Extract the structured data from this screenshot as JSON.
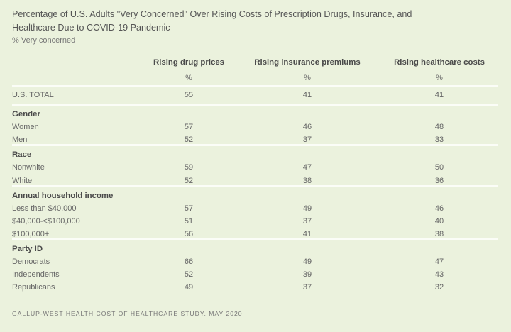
{
  "title": "Percentage of U.S. Adults \"Very Concerned\" Over Rising Costs of Prescription Drugs, Insurance, and Healthcare Due to COVID-19 Pandemic",
  "subtitle": "% Very concerned",
  "source": "GALLUP-WEST HEALTH COST OF HEALTHCARE STUDY, MAY 2020",
  "colors": {
    "background": "#ebf2dd",
    "separator": "#fbfdf7",
    "text": "#555555"
  },
  "chart_data": {
    "type": "table",
    "title": "Percentage of U.S. Adults \"Very Concerned\" Over Rising Costs of Prescription Drugs, Insurance, and Healthcare Due to COVID-19 Pandemic",
    "columns": [
      {
        "label": "Rising drug prices",
        "unit": "%"
      },
      {
        "label": "Rising insurance premiums",
        "unit": "%"
      },
      {
        "label": "Rising healthcare costs",
        "unit": "%"
      }
    ],
    "rows": [
      {
        "label": "U.S. TOTAL",
        "values": [
          55,
          41,
          41
        ]
      },
      {
        "label": "Gender",
        "group": true
      },
      {
        "label": "Women",
        "values": [
          57,
          46,
          48
        ]
      },
      {
        "label": "Men",
        "values": [
          52,
          37,
          33
        ]
      },
      {
        "label": "Race",
        "group": true
      },
      {
        "label": "Nonwhite",
        "values": [
          59,
          47,
          50
        ]
      },
      {
        "label": "White",
        "values": [
          52,
          38,
          36
        ]
      },
      {
        "label": "Annual household income",
        "group": true
      },
      {
        "label": "Less than $40,000",
        "values": [
          57,
          49,
          46
        ]
      },
      {
        "label": "$40,000-<$100,000",
        "values": [
          51,
          37,
          40
        ]
      },
      {
        "label": "$100,000+",
        "values": [
          56,
          41,
          38
        ]
      },
      {
        "label": "Party ID",
        "group": true
      },
      {
        "label": "Democrats",
        "values": [
          66,
          49,
          47
        ]
      },
      {
        "label": "Independents",
        "values": [
          52,
          39,
          43
        ]
      },
      {
        "label": "Republicans",
        "values": [
          49,
          37,
          32
        ]
      }
    ]
  }
}
